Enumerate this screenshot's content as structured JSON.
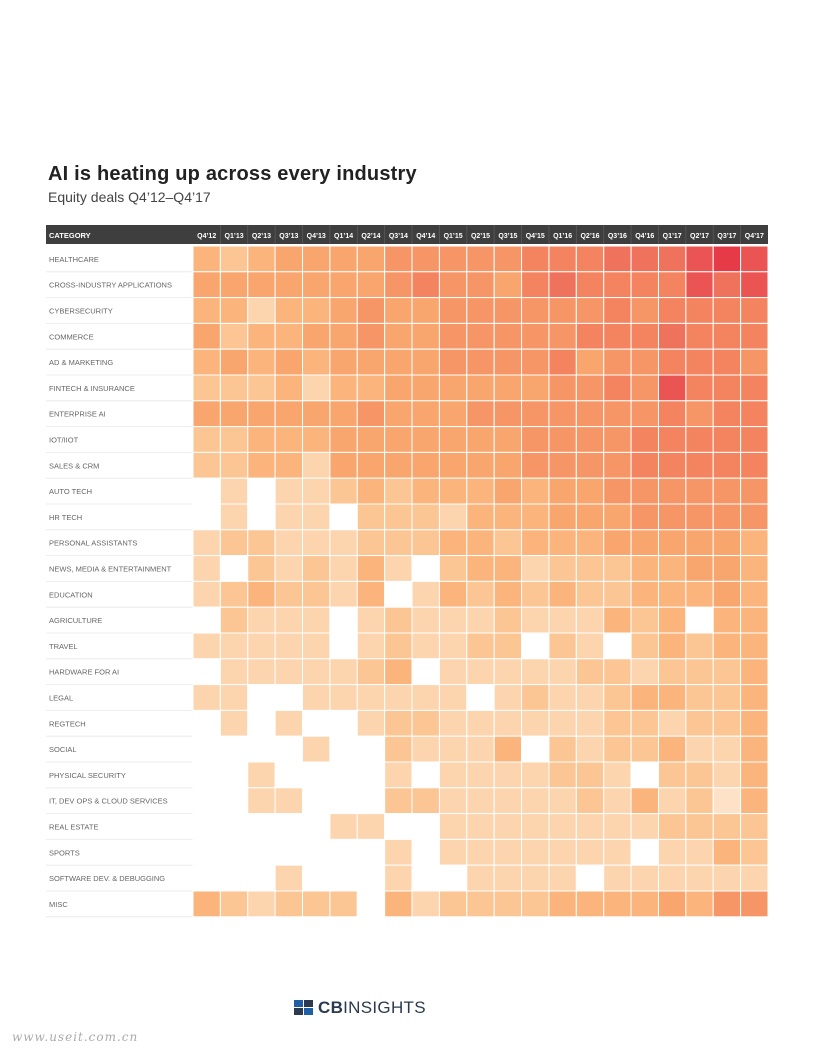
{
  "chart_data": {
    "type": "heatmap",
    "title": "AI is heating up across every industry",
    "subtitle": "Equity deals Q4’12–Q4’17",
    "row_header": "CATEGORY",
    "columns": [
      "Q4'12",
      "Q1'13",
      "Q2'13",
      "Q3'13",
      "Q4'13",
      "Q1'14",
      "Q2'14",
      "Q3'14",
      "Q4'14",
      "Q1'15",
      "Q2'15",
      "Q3'15",
      "Q4'15",
      "Q1'16",
      "Q2'16",
      "Q3'16",
      "Q4'16",
      "Q1'17",
      "Q2'17",
      "Q3'17",
      "Q4'17"
    ],
    "rows": [
      "HEALTHCARE",
      "CROSS-INDUSTRY APPLICATIONS",
      "CYBERSECURITY",
      "COMMERCE",
      "AD & MARKETING",
      "FINTECH & INSURANCE",
      "ENTERPRISE AI",
      "IOT/IIOT",
      "SALES & CRM",
      "AUTO TECH",
      "HR TECH",
      "PERSONAL ASSISTANTS",
      "NEWS, MEDIA & ENTERTAINMENT",
      "EDUCATION",
      "AGRICULTURE",
      "TRAVEL",
      "HARDWARE FOR AI",
      "LEGAL",
      "REGTECH",
      "SOCIAL",
      "PHYSICAL SECURITY",
      "IT, DEV OPS & CLOUD SERVICES",
      "REAL ESTATE",
      "SPORTS",
      "SOFTWARE DEV. & DEBUGGING",
      "MISC"
    ],
    "scale_note": "0 = no deals (white), 10 = highest deal activity (red)",
    "values": [
      [
        4,
        3,
        4,
        5,
        5,
        5,
        5,
        6,
        6,
        6,
        6,
        6,
        7,
        7,
        7,
        8,
        8,
        8,
        9,
        10,
        9
      ],
      [
        5,
        5,
        5,
        5,
        5,
        5,
        5,
        6,
        7,
        6,
        6,
        5,
        7,
        8,
        7,
        7,
        7,
        7,
        9,
        8,
        9
      ],
      [
        4,
        4,
        2,
        4,
        4,
        5,
        6,
        5,
        5,
        6,
        6,
        6,
        6,
        6,
        6,
        7,
        6,
        7,
        7,
        7,
        7
      ],
      [
        5,
        3,
        4,
        4,
        5,
        5,
        6,
        5,
        5,
        6,
        6,
        6,
        6,
        6,
        7,
        7,
        7,
        8,
        7,
        7,
        7
      ],
      [
        4,
        5,
        4,
        5,
        4,
        5,
        5,
        5,
        5,
        6,
        6,
        6,
        6,
        7,
        5,
        6,
        6,
        7,
        7,
        7,
        6
      ],
      [
        3,
        3,
        3,
        4,
        2,
        4,
        4,
        5,
        5,
        5,
        5,
        5,
        5,
        6,
        6,
        7,
        6,
        9,
        7,
        7,
        7
      ],
      [
        5,
        5,
        5,
        5,
        5,
        5,
        6,
        5,
        5,
        5,
        6,
        6,
        6,
        6,
        6,
        6,
        6,
        7,
        6,
        7,
        7
      ],
      [
        3,
        3,
        4,
        4,
        4,
        5,
        5,
        5,
        5,
        5,
        5,
        5,
        6,
        6,
        6,
        6,
        7,
        7,
        7,
        7,
        7
      ],
      [
        3,
        3,
        4,
        4,
        2,
        5,
        5,
        5,
        5,
        5,
        5,
        5,
        6,
        6,
        6,
        6,
        7,
        7,
        7,
        7,
        7
      ],
      [
        0,
        2,
        0,
        2,
        2,
        3,
        4,
        3,
        4,
        4,
        4,
        5,
        4,
        5,
        5,
        6,
        6,
        6,
        6,
        6,
        6
      ],
      [
        0,
        2,
        0,
        2,
        2,
        0,
        3,
        3,
        3,
        2,
        4,
        4,
        4,
        5,
        5,
        5,
        6,
        6,
        6,
        6,
        6
      ],
      [
        2,
        3,
        3,
        2,
        2,
        2,
        3,
        3,
        3,
        4,
        4,
        3,
        4,
        4,
        4,
        5,
        5,
        5,
        5,
        5,
        4
      ],
      [
        2,
        0,
        3,
        2,
        3,
        2,
        4,
        2,
        0,
        3,
        4,
        4,
        2,
        3,
        3,
        3,
        4,
        4,
        5,
        5,
        4
      ],
      [
        2,
        3,
        4,
        3,
        3,
        2,
        4,
        0,
        2,
        4,
        3,
        4,
        3,
        4,
        3,
        3,
        4,
        4,
        4,
        5,
        4
      ],
      [
        0,
        3,
        2,
        2,
        2,
        0,
        2,
        3,
        2,
        2,
        2,
        3,
        2,
        2,
        2,
        4,
        3,
        4,
        0,
        4,
        4
      ],
      [
        2,
        2,
        2,
        2,
        2,
        0,
        2,
        3,
        2,
        2,
        3,
        3,
        0,
        3,
        2,
        0,
        3,
        4,
        3,
        4,
        4
      ],
      [
        0,
        2,
        2,
        2,
        2,
        2,
        3,
        4,
        0,
        2,
        2,
        2,
        2,
        2,
        3,
        3,
        2,
        3,
        3,
        3,
        4
      ],
      [
        2,
        2,
        0,
        0,
        2,
        2,
        2,
        2,
        2,
        2,
        0,
        2,
        3,
        2,
        2,
        3,
        4,
        4,
        3,
        3,
        4
      ],
      [
        0,
        2,
        0,
        2,
        0,
        0,
        2,
        3,
        3,
        2,
        2,
        2,
        2,
        2,
        2,
        3,
        3,
        2,
        3,
        3,
        4
      ],
      [
        0,
        0,
        0,
        0,
        2,
        0,
        0,
        3,
        2,
        2,
        2,
        4,
        0,
        3,
        2,
        3,
        3,
        4,
        2,
        2,
        4
      ],
      [
        0,
        0,
        2,
        0,
        0,
        0,
        0,
        2,
        0,
        2,
        2,
        2,
        2,
        3,
        3,
        2,
        0,
        3,
        3,
        2,
        4
      ],
      [
        0,
        0,
        2,
        2,
        0,
        0,
        0,
        3,
        3,
        2,
        2,
        2,
        2,
        2,
        3,
        2,
        4,
        2,
        3,
        1,
        4
      ],
      [
        0,
        0,
        0,
        0,
        0,
        2,
        2,
        0,
        0,
        2,
        2,
        2,
        2,
        2,
        2,
        2,
        2,
        3,
        3,
        3,
        3
      ],
      [
        0,
        0,
        0,
        0,
        0,
        0,
        0,
        2,
        0,
        2,
        2,
        2,
        2,
        2,
        2,
        2,
        0,
        2,
        2,
        4,
        3
      ],
      [
        0,
        0,
        0,
        2,
        0,
        0,
        0,
        2,
        0,
        0,
        2,
        2,
        2,
        2,
        0,
        2,
        2,
        2,
        2,
        2,
        2
      ],
      [
        4,
        3,
        2,
        3,
        3,
        3,
        0,
        4,
        2,
        3,
        3,
        3,
        3,
        4,
        4,
        4,
        4,
        5,
        4,
        6,
        6
      ]
    ]
  },
  "footer": {
    "logo_text_bold": "CB",
    "logo_text_regular": "INSIGHTS",
    "watermark": "www.useit.com.cn"
  }
}
